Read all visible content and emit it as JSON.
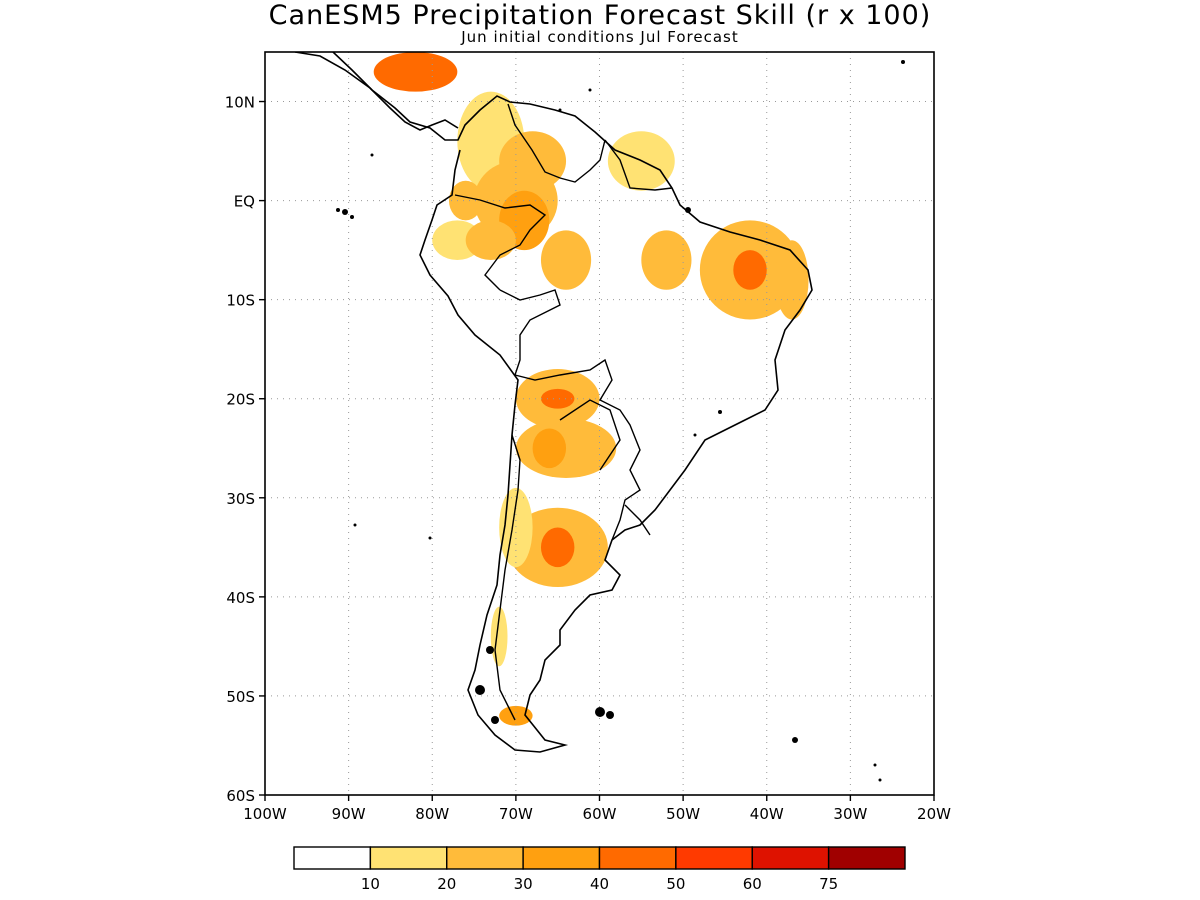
{
  "title": "CanESM5 Precipitation Forecast Skill (r x 100)",
  "subtitle": "Jun initial conditions  Jul Forecast",
  "map": {
    "lon_range": [
      -100,
      -20
    ],
    "lat_range": [
      -60,
      15
    ],
    "lat_ticks": [
      {
        "value": 10,
        "label": "10N"
      },
      {
        "value": 0,
        "label": "EQ"
      },
      {
        "value": -10,
        "label": "10S"
      },
      {
        "value": -20,
        "label": "20S"
      },
      {
        "value": -30,
        "label": "30S"
      },
      {
        "value": -40,
        "label": "40S"
      },
      {
        "value": -50,
        "label": "50S"
      },
      {
        "value": -60,
        "label": "60S"
      }
    ],
    "lon_ticks": [
      {
        "value": -100,
        "label": "100W"
      },
      {
        "value": -90,
        "label": "90W"
      },
      {
        "value": -80,
        "label": "80W"
      },
      {
        "value": -70,
        "label": "70W"
      },
      {
        "value": -60,
        "label": "60W"
      },
      {
        "value": -50,
        "label": "50W"
      },
      {
        "value": -40,
        "label": "40W"
      },
      {
        "value": -30,
        "label": "30W"
      },
      {
        "value": -20,
        "label": "20W"
      }
    ],
    "grid": true
  },
  "colorbar": {
    "bins": [
      {
        "color": "#ffffff"
      },
      {
        "color": "#ffe273"
      },
      {
        "color": "#ffbb3a"
      },
      {
        "color": "#ffa010"
      },
      {
        "color": "#ff6a00"
      },
      {
        "color": "#ff3a00"
      },
      {
        "color": "#de1200"
      },
      {
        "color": "#a00000"
      }
    ],
    "labels": [
      "10",
      "20",
      "30",
      "40",
      "50",
      "60",
      "75"
    ]
  },
  "skill_patches": [
    {
      "lon": -73,
      "lat": 6,
      "level": 1,
      "rx": 4,
      "ry": 5
    },
    {
      "lon": -68,
      "lat": 4,
      "level": 2,
      "rx": 4,
      "ry": 3
    },
    {
      "lon": -70,
      "lat": 0,
      "level": 2,
      "rx": 5,
      "ry": 4
    },
    {
      "lon": -69,
      "lat": -2,
      "level": 3,
      "rx": 3,
      "ry": 3
    },
    {
      "lon": -77,
      "lat": -4,
      "level": 1,
      "rx": 3,
      "ry": 2
    },
    {
      "lon": -76,
      "lat": 0,
      "level": 2,
      "rx": 2,
      "ry": 2
    },
    {
      "lon": -73,
      "lat": -4,
      "level": 2,
      "rx": 3,
      "ry": 2
    },
    {
      "lon": -64,
      "lat": -6,
      "level": 2,
      "rx": 3,
      "ry": 3
    },
    {
      "lon": -55,
      "lat": 4,
      "level": 1,
      "rx": 4,
      "ry": 3
    },
    {
      "lon": -52,
      "lat": -6,
      "level": 2,
      "rx": 3,
      "ry": 3
    },
    {
      "lon": -42,
      "lat": -7,
      "level": 2,
      "rx": 6,
      "ry": 5
    },
    {
      "lon": -42,
      "lat": -7,
      "level": 4,
      "rx": 2,
      "ry": 2
    },
    {
      "lon": -37,
      "lat": -8,
      "level": 2,
      "rx": 2,
      "ry": 4
    },
    {
      "lon": -82,
      "lat": 13,
      "level": 4,
      "rx": 5,
      "ry": 2
    },
    {
      "lon": -65,
      "lat": -20,
      "level": 2,
      "rx": 5,
      "ry": 3
    },
    {
      "lon": -65,
      "lat": -20,
      "level": 4,
      "rx": 2,
      "ry": 1
    },
    {
      "lon": -64,
      "lat": -25,
      "level": 2,
      "rx": 6,
      "ry": 3
    },
    {
      "lon": -66,
      "lat": -25,
      "level": 3,
      "rx": 2,
      "ry": 2
    },
    {
      "lon": -65,
      "lat": -35,
      "level": 2,
      "rx": 6,
      "ry": 4
    },
    {
      "lon": -65,
      "lat": -35,
      "level": 4,
      "rx": 2,
      "ry": 2
    },
    {
      "lon": -70,
      "lat": -33,
      "level": 1,
      "rx": 2,
      "ry": 4
    },
    {
      "lon": -72,
      "lat": -44,
      "level": 1,
      "rx": 1,
      "ry": 3
    },
    {
      "lon": -70,
      "lat": -52,
      "level": 3,
      "rx": 2,
      "ry": 1
    }
  ]
}
